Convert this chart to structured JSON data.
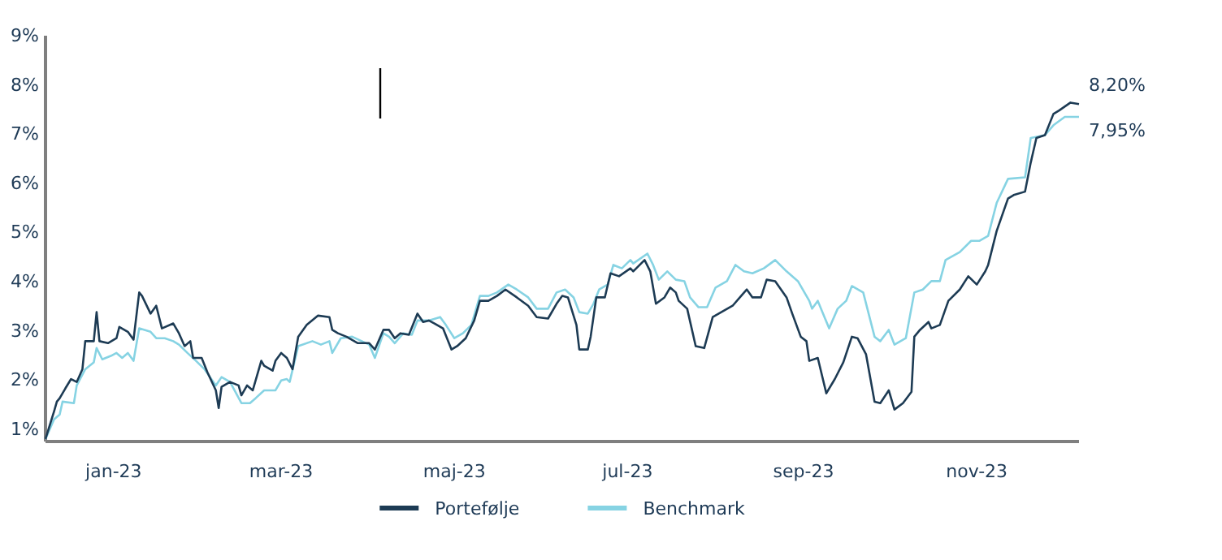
{
  "chart_data": {
    "type": "line",
    "xlim": [
      "2022-12-08",
      "2023-12-07"
    ],
    "xticks": [
      {
        "value": "2023-01-01",
        "label": "jan-23"
      },
      {
        "value": "2023-03-01",
        "label": "mar-23"
      },
      {
        "value": "2023-05-01",
        "label": "maj-23"
      },
      {
        "value": "2023-07-01",
        "label": "jul-23"
      },
      {
        "value": "2023-09-01",
        "label": "sep-23"
      },
      {
        "value": "2023-11-01",
        "label": "nov-23"
      }
    ],
    "ylim": [
      0.75,
      9
    ],
    "yticks": [
      {
        "value": 1,
        "label": "1%"
      },
      {
        "value": 2,
        "label": "2%"
      },
      {
        "value": 3,
        "label": "3%"
      },
      {
        "value": 4,
        "label": "4%"
      },
      {
        "value": 5,
        "label": "5%"
      },
      {
        "value": 6,
        "label": "6%"
      },
      {
        "value": 7,
        "label": "7%"
      },
      {
        "value": 8,
        "label": "8%"
      },
      {
        "value": 9,
        "label": "9%"
      }
    ],
    "grid": false,
    "legend": "bottom",
    "marker": "none",
    "line_style": "solid",
    "annotations": [
      {
        "text": "8,20%",
        "x": "2023-12-07",
        "y": 7.61
      },
      {
        "text": "7,95%",
        "x": "2023-12-07",
        "y": 7.35
      }
    ],
    "series": [
      {
        "name": "Benchmark",
        "color": "#86d3e3",
        "x": [
          "2022-12-08",
          "2022-12-11",
          "2022-12-13",
          "2022-12-14",
          "2022-12-18",
          "2022-12-19",
          "2022-12-22",
          "2022-12-25",
          "2022-12-26",
          "2022-12-28",
          "2022-12-31",
          "2023-01-02",
          "2023-01-04",
          "2023-01-06",
          "2023-01-08",
          "2023-01-10",
          "2023-01-14",
          "2023-01-16",
          "2023-01-19",
          "2023-01-22",
          "2023-01-24",
          "2023-01-27",
          "2023-01-30",
          "2023-02-02",
          "2023-02-06",
          "2023-02-08",
          "2023-02-11",
          "2023-02-15",
          "2023-02-18",
          "2023-02-20",
          "2023-02-23",
          "2023-02-27",
          "2023-03-01",
          "2023-03-03",
          "2023-03-04",
          "2023-03-07",
          "2023-03-12",
          "2023-03-15",
          "2023-03-18",
          "2023-03-19",
          "2023-03-22",
          "2023-03-26",
          "2023-04-01",
          "2023-04-03",
          "2023-04-06",
          "2023-04-08",
          "2023-04-10",
          "2023-04-13",
          "2023-04-16",
          "2023-04-18",
          "2023-04-22",
          "2023-04-26",
          "2023-04-28",
          "2023-05-01",
          "2023-05-04",
          "2023-05-07",
          "2023-05-10",
          "2023-05-13",
          "2023-05-16",
          "2023-05-20",
          "2023-05-23",
          "2023-05-27",
          "2023-05-30",
          "2023-06-03",
          "2023-06-06",
          "2023-06-09",
          "2023-06-12",
          "2023-06-14",
          "2023-06-17",
          "2023-06-19",
          "2023-06-21",
          "2023-06-24",
          "2023-06-26",
          "2023-06-29",
          "2023-07-02",
          "2023-07-03",
          "2023-07-08",
          "2023-07-10",
          "2023-07-12",
          "2023-07-15",
          "2023-07-18",
          "2023-07-21",
          "2023-07-23",
          "2023-07-26",
          "2023-07-29",
          "2023-08-01",
          "2023-08-05",
          "2023-08-08",
          "2023-08-11",
          "2023-08-14",
          "2023-08-18",
          "2023-08-22",
          "2023-08-26",
          "2023-08-30",
          "2023-09-03",
          "2023-09-04",
          "2023-09-06",
          "2023-09-10",
          "2023-09-13",
          "2023-09-16",
          "2023-09-18",
          "2023-09-22",
          "2023-09-26",
          "2023-09-28",
          "2023-10-01",
          "2023-10-03",
          "2023-10-07",
          "2023-10-10",
          "2023-10-13",
          "2023-10-16",
          "2023-10-19",
          "2023-10-21",
          "2023-10-26",
          "2023-10-30",
          "2023-11-02",
          "2023-11-05",
          "2023-11-08",
          "2023-11-12",
          "2023-11-18",
          "2023-11-20",
          "2023-11-25",
          "2023-11-28",
          "2023-12-02",
          "2023-12-07"
        ],
        "values": [
          0.8,
          1.2,
          1.3,
          1.56,
          1.53,
          1.89,
          2.22,
          2.36,
          2.65,
          2.42,
          2.49,
          2.55,
          2.45,
          2.55,
          2.39,
          3.05,
          2.98,
          2.85,
          2.85,
          2.79,
          2.72,
          2.55,
          2.39,
          2.22,
          1.89,
          2.06,
          1.96,
          1.53,
          1.53,
          1.63,
          1.79,
          1.79,
          1.99,
          2.02,
          1.96,
          2.69,
          2.79,
          2.72,
          2.79,
          2.55,
          2.85,
          2.88,
          2.72,
          2.45,
          2.95,
          2.88,
          2.75,
          2.95,
          2.92,
          3.21,
          3.21,
          3.28,
          3.12,
          2.85,
          2.95,
          3.12,
          3.71,
          3.71,
          3.78,
          3.94,
          3.84,
          3.68,
          3.45,
          3.45,
          3.78,
          3.84,
          3.68,
          3.38,
          3.35,
          3.55,
          3.84,
          3.94,
          4.34,
          4.27,
          4.44,
          4.37,
          4.57,
          4.34,
          4.04,
          4.21,
          4.04,
          4.01,
          3.68,
          3.48,
          3.48,
          3.88,
          4.01,
          4.34,
          4.21,
          4.17,
          4.27,
          4.44,
          4.21,
          4.01,
          3.61,
          3.45,
          3.61,
          3.05,
          3.45,
          3.61,
          3.91,
          3.78,
          2.88,
          2.79,
          3.02,
          2.72,
          2.85,
          3.78,
          3.84,
          4.01,
          4.01,
          4.44,
          4.6,
          4.83,
          4.83,
          4.93,
          5.6,
          6.09,
          6.12,
          6.92,
          6.98,
          7.18,
          7.35,
          7.35
        ]
      },
      {
        "name": "Portefølje",
        "color": "#1d3b54",
        "x": [
          "2022-12-08",
          "2022-12-11",
          "2022-12-12",
          "2022-12-13",
          "2022-12-15",
          "2022-12-17",
          "2022-12-19",
          "2022-12-21",
          "2022-12-22",
          "2022-12-23",
          "2022-12-25",
          "2022-12-26",
          "2022-12-27",
          "2022-12-30",
          "2023-01-02",
          "2023-01-03",
          "2023-01-06",
          "2023-01-08",
          "2023-01-10",
          "2023-01-11",
          "2023-01-14",
          "2023-01-16",
          "2023-01-18",
          "2023-01-22",
          "2023-01-24",
          "2023-01-26",
          "2023-01-28",
          "2023-01-29",
          "2023-02-01",
          "2023-02-03",
          "2023-02-06",
          "2023-02-07",
          "2023-02-08",
          "2023-02-11",
          "2023-02-14",
          "2023-02-15",
          "2023-02-17",
          "2023-02-19",
          "2023-02-22",
          "2023-02-23",
          "2023-02-26",
          "2023-02-27",
          "2023-03-01",
          "2023-03-03",
          "2023-03-05",
          "2023-03-07",
          "2023-03-10",
          "2023-03-14",
          "2023-03-18",
          "2023-03-19",
          "2023-03-21",
          "2023-03-24",
          "2023-03-28",
          "2023-04-01",
          "2023-04-03",
          "2023-04-06",
          "2023-04-08",
          "2023-04-10",
          "2023-04-12",
          "2023-04-15",
          "2023-04-18",
          "2023-04-20",
          "2023-04-22",
          "2023-04-24",
          "2023-04-27",
          "2023-04-30",
          "2023-05-02",
          "2023-05-05",
          "2023-05-08",
          "2023-05-10",
          "2023-05-13",
          "2023-05-16",
          "2023-05-19",
          "2023-05-23",
          "2023-05-27",
          "2023-05-30",
          "2023-06-03",
          "2023-06-06",
          "2023-06-08",
          "2023-06-10",
          "2023-06-13",
          "2023-06-14",
          "2023-06-17",
          "2023-06-18",
          "2023-06-20",
          "2023-06-23",
          "2023-06-25",
          "2023-06-28",
          "2023-07-02",
          "2023-07-03",
          "2023-07-07",
          "2023-07-09",
          "2023-07-11",
          "2023-07-14",
          "2023-07-16",
          "2023-07-18",
          "2023-07-19",
          "2023-07-22",
          "2023-07-25",
          "2023-07-28",
          "2023-07-31",
          "2023-08-03",
          "2023-08-07",
          "2023-08-10",
          "2023-08-12",
          "2023-08-14",
          "2023-08-17",
          "2023-08-19",
          "2023-08-22",
          "2023-08-26",
          "2023-08-28",
          "2023-08-31",
          "2023-09-02",
          "2023-09-03",
          "2023-09-06",
          "2023-09-09",
          "2023-09-12",
          "2023-09-15",
          "2023-09-18",
          "2023-09-20",
          "2023-09-23",
          "2023-09-26",
          "2023-09-28",
          "2023-10-01",
          "2023-10-03",
          "2023-10-06",
          "2023-10-09",
          "2023-10-10",
          "2023-10-12",
          "2023-10-15",
          "2023-10-16",
          "2023-10-19",
          "2023-10-22",
          "2023-10-26",
          "2023-10-29",
          "2023-11-01",
          "2023-11-04",
          "2023-11-05",
          "2023-11-08",
          "2023-11-12",
          "2023-11-14",
          "2023-11-18",
          "2023-11-20",
          "2023-11-22",
          "2023-11-25",
          "2023-11-28",
          "2023-11-30",
          "2023-12-04",
          "2023-12-07"
        ],
        "values": [
          0.8,
          1.36,
          1.56,
          1.63,
          1.83,
          2.02,
          1.96,
          2.22,
          2.79,
          2.79,
          2.79,
          3.38,
          2.79,
          2.75,
          2.85,
          3.08,
          2.98,
          2.82,
          3.78,
          3.71,
          3.35,
          3.51,
          3.05,
          3.15,
          2.95,
          2.69,
          2.79,
          2.45,
          2.45,
          2.16,
          1.79,
          1.43,
          1.86,
          1.96,
          1.89,
          1.69,
          1.89,
          1.79,
          2.39,
          2.29,
          2.19,
          2.39,
          2.55,
          2.45,
          2.22,
          2.88,
          3.12,
          3.31,
          3.28,
          3.02,
          2.95,
          2.88,
          2.75,
          2.75,
          2.62,
          3.02,
          3.02,
          2.85,
          2.95,
          2.92,
          3.35,
          3.18,
          3.21,
          3.15,
          3.05,
          2.62,
          2.69,
          2.85,
          3.21,
          3.61,
          3.61,
          3.71,
          3.84,
          3.68,
          3.51,
          3.28,
          3.25,
          3.55,
          3.71,
          3.68,
          3.12,
          2.62,
          2.62,
          2.88,
          3.68,
          3.68,
          4.17,
          4.11,
          4.27,
          4.21,
          4.44,
          4.21,
          3.55,
          3.68,
          3.88,
          3.78,
          3.61,
          3.45,
          2.69,
          2.65,
          3.28,
          3.38,
          3.51,
          3.71,
          3.84,
          3.68,
          3.68,
          4.04,
          4.01,
          3.68,
          3.35,
          2.88,
          2.79,
          2.39,
          2.45,
          1.73,
          2.02,
          2.36,
          2.88,
          2.85,
          2.52,
          1.56,
          1.53,
          1.79,
          1.4,
          1.53,
          1.76,
          2.88,
          3.02,
          3.18,
          3.05,
          3.12,
          3.61,
          3.84,
          4.11,
          3.94,
          4.21,
          4.34,
          5.03,
          5.69,
          5.76,
          5.83,
          6.42,
          6.92,
          6.98,
          7.41,
          7.48,
          7.64,
          7.61
        ]
      }
    ]
  }
}
